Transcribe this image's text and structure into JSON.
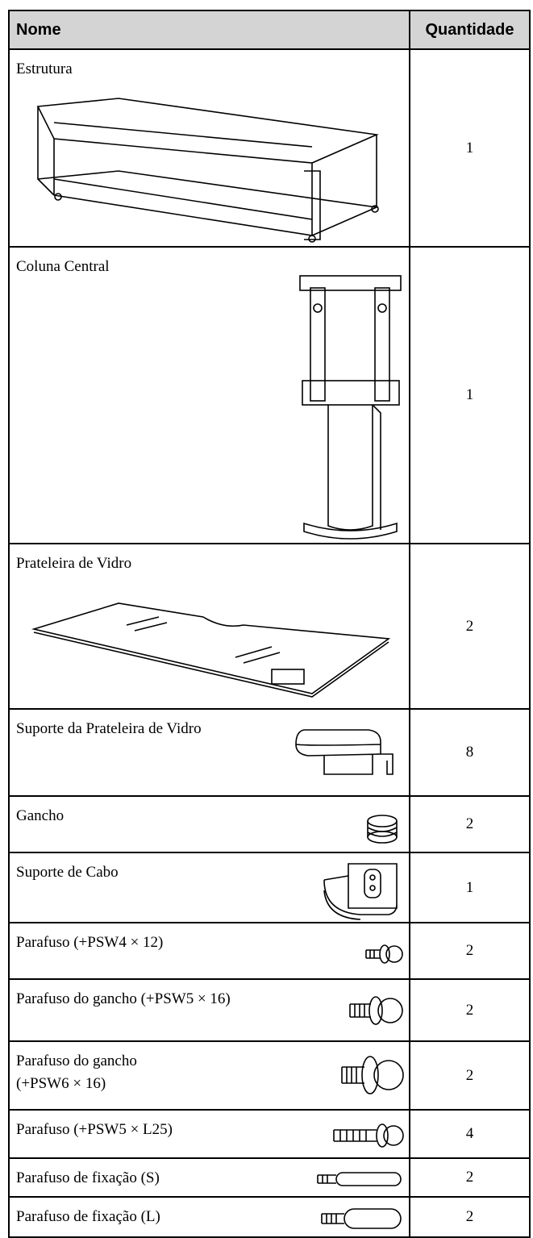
{
  "header": {
    "name": "Nome",
    "quantity": "Quantidade"
  },
  "rows": [
    {
      "name": "Estrutura",
      "quantity": 1
    },
    {
      "name": "Coluna Central",
      "quantity": 1
    },
    {
      "name": "Prateleira de Vidro",
      "quantity": 2
    },
    {
      "name": "Suporte da Prateleira de Vidro",
      "quantity": 8
    },
    {
      "name": "Gancho",
      "quantity": 2
    },
    {
      "name": "Suporte de Cabo",
      "quantity": 1
    },
    {
      "name": "Parafuso (+PSW4 × 12)",
      "quantity": 2
    },
    {
      "name": "Parafuso do gancho (+PSW5 × 16)",
      "quantity": 2
    },
    {
      "name": "Parafuso do gancho\n(+PSW6 × 16)",
      "quantity": 2
    },
    {
      "name": "Parafuso (+PSW5 × L25)",
      "quantity": 4
    },
    {
      "name": "Parafuso de fixação (S)",
      "quantity": 2
    },
    {
      "name": "Parafuso de fixação (L)",
      "quantity": 2
    }
  ]
}
